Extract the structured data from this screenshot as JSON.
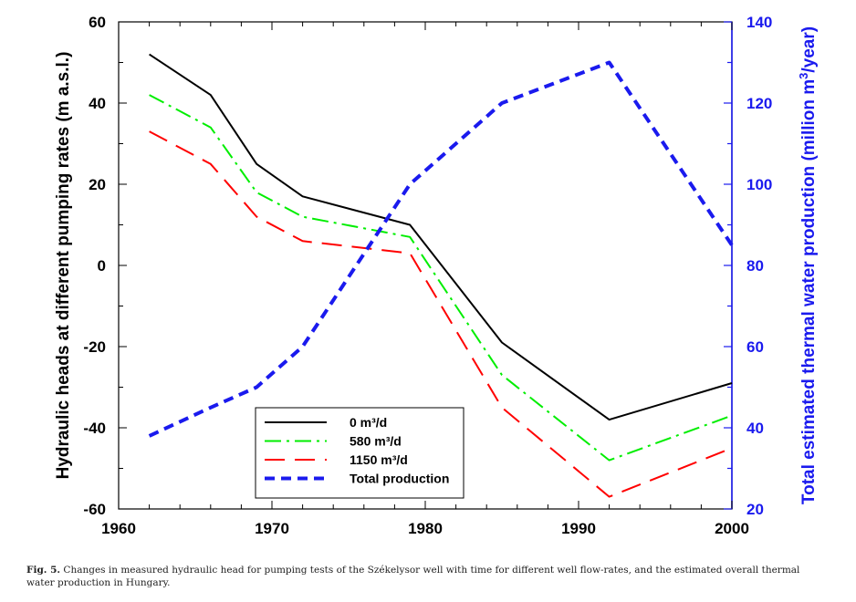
{
  "caption": {
    "label": "Fig. 5.",
    "text": "Changes in measured hydraulic head for pumping tests of the Székelysor well with time for different well flow-rates, and the estimated overall thermal water production in Hungary."
  },
  "chart_data": {
    "type": "line",
    "title": "",
    "xlabel": "",
    "ylabel": "Hydraulic heads at different pumping rates (m a.s.l.)",
    "y2label": "Total estimated thermal water production (million m³/year)",
    "xlim": [
      1960,
      2000
    ],
    "ylim": [
      -60,
      60
    ],
    "y2lim": [
      20,
      140
    ],
    "xticks": [
      1960,
      1970,
      1980,
      1990,
      2000
    ],
    "yticks": [
      -60,
      -40,
      -20,
      0,
      20,
      40,
      60
    ],
    "y2ticks": [
      20,
      40,
      60,
      80,
      100,
      120,
      140
    ],
    "grid": false,
    "legend_position": "bottom-center",
    "series": [
      {
        "name": "0 m³/d",
        "axis": "left",
        "color": "#000000",
        "dash": "solid",
        "x": [
          1962,
          1966,
          1969,
          1972,
          1979,
          1985,
          1992,
          2000
        ],
        "y": [
          52,
          42,
          25,
          17,
          10,
          -19,
          -38,
          -29
        ]
      },
      {
        "name": "580 m³/d",
        "axis": "left",
        "color": "#00ee00",
        "dash": "dashdot",
        "x": [
          1962,
          1966,
          1969,
          1972,
          1979,
          1985,
          1992,
          2000
        ],
        "y": [
          42,
          34,
          18,
          12,
          7,
          -27,
          -48,
          -37
        ]
      },
      {
        "name": "1150 m³/d",
        "axis": "left",
        "color": "#ff0000",
        "dash": "longdash",
        "x": [
          1962,
          1966,
          1969,
          1972,
          1979,
          1985,
          1992,
          2000
        ],
        "y": [
          33,
          25,
          12,
          6,
          3,
          -35,
          -57,
          -45
        ]
      },
      {
        "name": "Total production",
        "axis": "right",
        "color": "#1a1aee",
        "dash": "dash",
        "x": [
          1962,
          1966,
          1969,
          1972,
          1979,
          1985,
          1992,
          2000
        ],
        "y": [
          38,
          45,
          50,
          60,
          100,
          120,
          130,
          85
        ]
      }
    ]
  }
}
